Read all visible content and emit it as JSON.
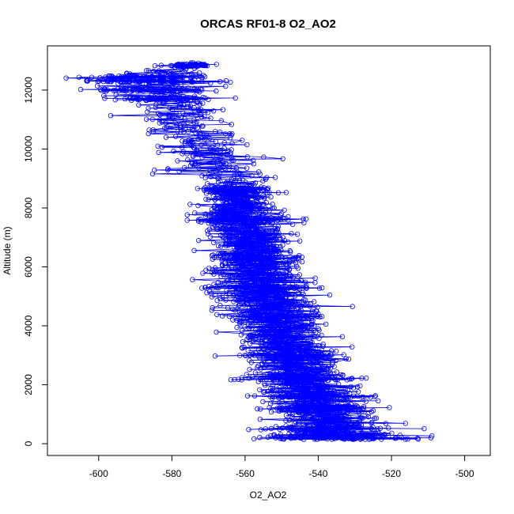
{
  "chart_data": {
    "type": "scatter",
    "title": "ORCAS RF01-8 O2_AO2",
    "xlabel": "O2_AO2",
    "ylabel": "Altitude (m)",
    "xlim": [
      -614,
      -493
    ],
    "ylim": [
      -400,
      13500
    ],
    "x_ticks": [
      -600,
      -580,
      -560,
      -540,
      -520,
      -500
    ],
    "y_ticks": [
      0,
      2000,
      4000,
      6000,
      8000,
      10000,
      12000
    ],
    "x_tick_labels": [
      "-600",
      "-580",
      "-560",
      "-540",
      "-520",
      "-500"
    ],
    "y_tick_labels": [
      "0",
      "2000",
      "4000",
      "6000",
      "8000",
      "10000",
      "12000"
    ],
    "marker": "open-circle",
    "line": true,
    "grid": false,
    "colors": {
      "series": "#0000ff",
      "axis": "#000000"
    },
    "series": [
      {
        "profile": [
          {
            "y": 150,
            "xmin": -567,
            "xmax": -496,
            "center": -534
          },
          {
            "y": 600,
            "xmin": -565,
            "xmax": -505,
            "center": -537
          },
          {
            "y": 1200,
            "xmin": -566,
            "xmax": -510,
            "center": -540
          },
          {
            "y": 1800,
            "xmin": -572,
            "xmax": -515,
            "center": -543
          },
          {
            "y": 2500,
            "xmin": -574,
            "xmax": -520,
            "center": -546
          },
          {
            "y": 3300,
            "xmin": -576,
            "xmax": -525,
            "center": -549
          },
          {
            "y": 4000,
            "xmin": -577,
            "xmax": -527,
            "center": -551
          },
          {
            "y": 4700,
            "xmin": -580,
            "xmax": -528,
            "center": -553
          },
          {
            "y": 5300,
            "xmin": -583,
            "xmax": -530,
            "center": -555
          },
          {
            "y": 6000,
            "xmin": -585,
            "xmax": -532,
            "center": -557
          },
          {
            "y": 6600,
            "xmin": -583,
            "xmax": -535,
            "center": -558
          },
          {
            "y": 7200,
            "xmin": -580,
            "xmax": -535,
            "center": -560
          },
          {
            "y": 7800,
            "xmin": -585,
            "xmax": -538,
            "center": -562
          },
          {
            "y": 8600,
            "xmin": -575,
            "xmax": -545,
            "center": -562
          },
          {
            "y": 9200,
            "xmin": -598,
            "xmax": -530,
            "center": -567
          },
          {
            "y": 10000,
            "xmin": -597,
            "xmax": -540,
            "center": -572
          },
          {
            "y": 10800,
            "xmin": -603,
            "xmax": -545,
            "center": -575
          },
          {
            "y": 11500,
            "xmin": -600,
            "xmax": -555,
            "center": -580
          },
          {
            "y": 12000,
            "xmin": -608,
            "xmax": -552,
            "center": -585
          },
          {
            "y": 12400,
            "xmin": -610,
            "xmax": -540,
            "center": -588
          },
          {
            "y": 12850,
            "xmin": -590,
            "xmax": -565,
            "center": -575
          }
        ]
      }
    ]
  }
}
